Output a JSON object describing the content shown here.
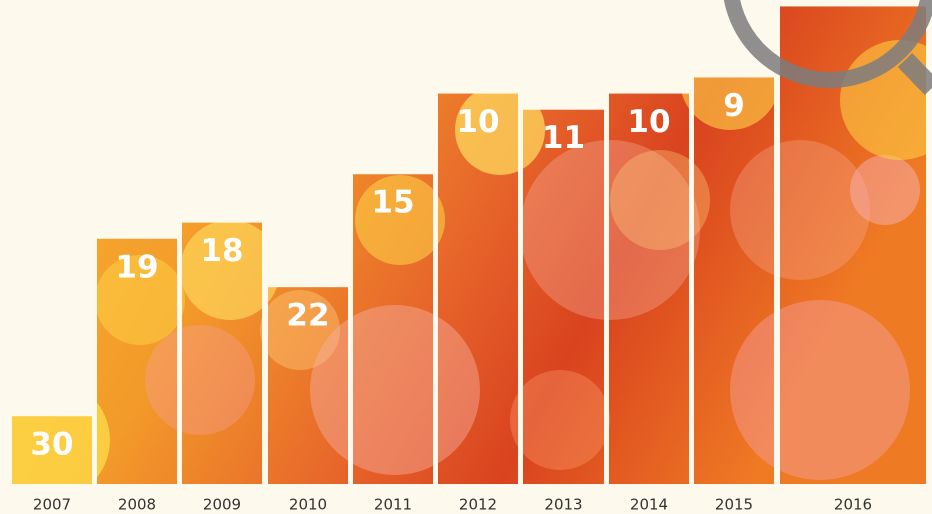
{
  "chart_data": {
    "type": "bar",
    "categories": [
      "2007",
      "2008",
      "2009",
      "2010",
      "2011",
      "2012",
      "2013",
      "2014",
      "2015",
      "2016"
    ],
    "values": [
      30,
      19,
      18,
      22,
      15,
      10,
      11,
      10,
      9,
      4.6
    ],
    "value_labels": [
      "30",
      "19",
      "18",
      "22",
      "15",
      "10",
      "11",
      "10",
      "9",
      null
    ],
    "ylim": [
      34.2,
      4.2
    ]
  }
}
